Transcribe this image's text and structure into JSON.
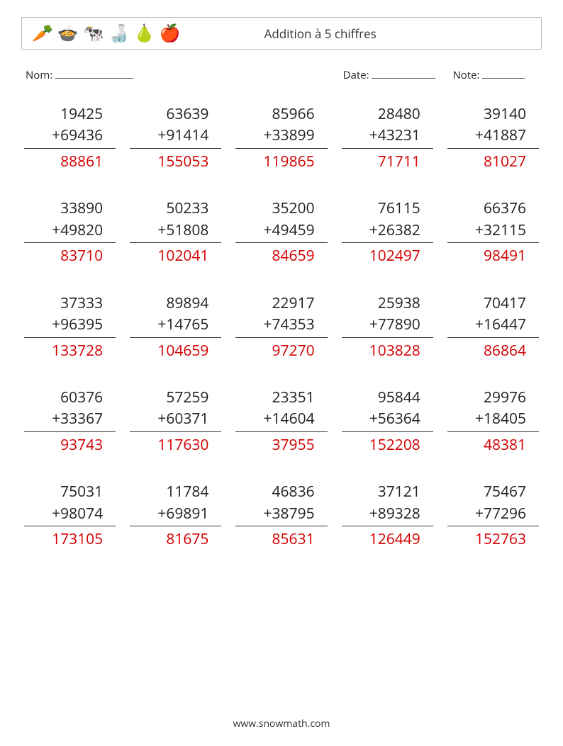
{
  "header": {
    "title": "Addition à 5 chiffres",
    "icons": [
      "🥕",
      "🍲",
      "🐄",
      "🍶",
      "🍐",
      "🍎"
    ]
  },
  "labels": {
    "name": "Nom:",
    "date": "Date:",
    "note": "Note:"
  },
  "colors": {
    "answer": "#d40000",
    "text": "#222222"
  },
  "operator": "+",
  "problems": [
    {
      "a": "19425",
      "b": "69436",
      "r": "88861"
    },
    {
      "a": "63639",
      "b": "91414",
      "r": "155053"
    },
    {
      "a": "85966",
      "b": "33899",
      "r": "119865"
    },
    {
      "a": "28480",
      "b": "43231",
      "r": "71711"
    },
    {
      "a": "39140",
      "b": "41887",
      "r": "81027"
    },
    {
      "a": "33890",
      "b": "49820",
      "r": "83710"
    },
    {
      "a": "50233",
      "b": "51808",
      "r": "102041"
    },
    {
      "a": "35200",
      "b": "49459",
      "r": "84659"
    },
    {
      "a": "76115",
      "b": "26382",
      "r": "102497"
    },
    {
      "a": "66376",
      "b": "32115",
      "r": "98491"
    },
    {
      "a": "37333",
      "b": "96395",
      "r": "133728"
    },
    {
      "a": "89894",
      "b": "14765",
      "r": "104659"
    },
    {
      "a": "22917",
      "b": "74353",
      "r": "97270"
    },
    {
      "a": "25938",
      "b": "77890",
      "r": "103828"
    },
    {
      "a": "70417",
      "b": "16447",
      "r": "86864"
    },
    {
      "a": "60376",
      "b": "33367",
      "r": "93743"
    },
    {
      "a": "57259",
      "b": "60371",
      "r": "117630"
    },
    {
      "a": "23351",
      "b": "14604",
      "r": "37955"
    },
    {
      "a": "95844",
      "b": "56364",
      "r": "152208"
    },
    {
      "a": "29976",
      "b": "18405",
      "r": "48381"
    },
    {
      "a": "75031",
      "b": "98074",
      "r": "173105"
    },
    {
      "a": "11784",
      "b": "69891",
      "r": "81675"
    },
    {
      "a": "46836",
      "b": "38795",
      "r": "85631"
    },
    {
      "a": "37121",
      "b": "89328",
      "r": "126449"
    },
    {
      "a": "75467",
      "b": "77296",
      "r": "152763"
    }
  ],
  "footer": "www.snowmath.com"
}
